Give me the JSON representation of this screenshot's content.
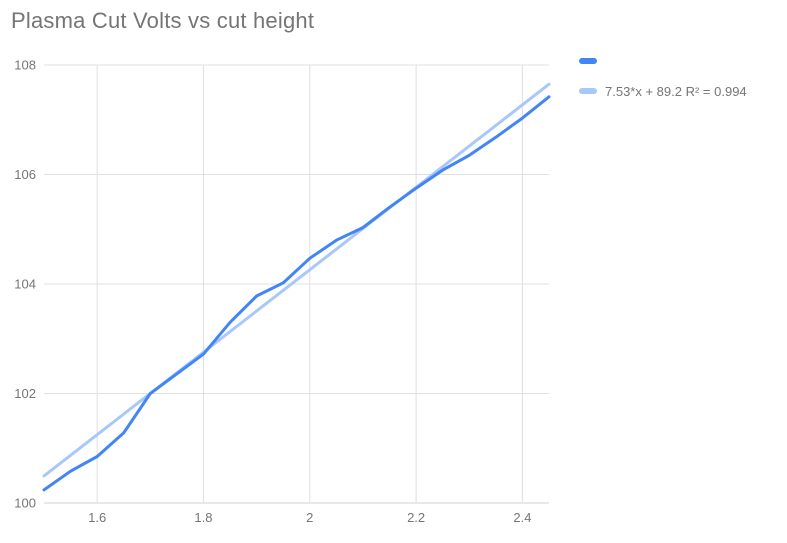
{
  "chart_data": {
    "type": "line",
    "title": "Plasma Cut Volts vs cut height",
    "xlabel": "",
    "ylabel": "",
    "xlim": [
      1.5,
      2.45
    ],
    "ylim": [
      100,
      108
    ],
    "x_ticks": [
      1.6,
      1.8,
      2,
      2.2,
      2.4
    ],
    "x_tick_labels": [
      "1.6",
      "1.8",
      "2",
      "2.2",
      "2.4"
    ],
    "y_ticks": [
      100,
      102,
      104,
      106,
      108
    ],
    "y_tick_labels": [
      "100",
      "102",
      "104",
      "106",
      "108"
    ],
    "grid": true,
    "legend_position": "top-right",
    "background_color": "#FFFFFF",
    "grid_color": "#E0E0E0",
    "axis_color": "#D2D2D2",
    "tick_label_color": "#757575",
    "title_color": "#757575",
    "x": [
      1.5,
      1.55,
      1.6,
      1.65,
      1.7,
      1.75,
      1.8,
      1.85,
      1.9,
      1.95,
      2.0,
      2.05,
      2.1,
      2.15,
      2.2,
      2.25,
      2.3,
      2.35,
      2.4,
      2.45
    ],
    "series": [
      {
        "label": "",
        "color": "#4285F4",
        "values": [
          100.24,
          100.58,
          100.85,
          101.28,
          102.0,
          102.36,
          102.72,
          103.3,
          103.78,
          104.02,
          104.47,
          104.8,
          105.03,
          105.4,
          105.75,
          106.08,
          106.35,
          106.68,
          107.03,
          107.42
        ]
      },
      {
        "label": "7.53*x + 89.2 R² = 0.994",
        "color": "#A8C7FA",
        "trend": {
          "slope": 7.53,
          "intercept": 89.2,
          "r2": 0.994
        }
      }
    ]
  }
}
